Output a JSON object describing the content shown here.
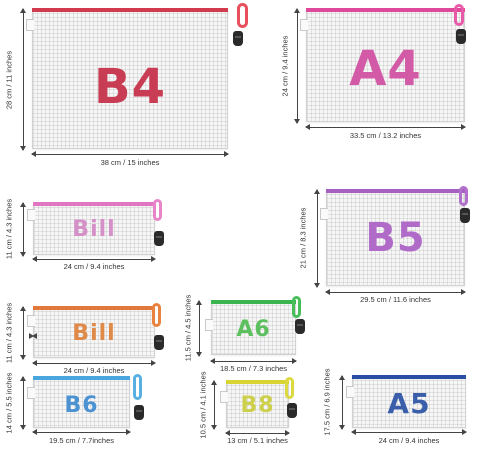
{
  "bags": [
    {
      "id": "b4",
      "label": "B4",
      "color": "#c83c54",
      "width": "38 cm / 15 inches",
      "height": "28 cm / 11 inches"
    },
    {
      "id": "a4",
      "label": "A4",
      "color": "#d25aa6",
      "width": "33.5 cm / 13.2 inches",
      "height": "24 cm / 9.4 inches"
    },
    {
      "id": "bill1",
      "label": "Bill",
      "color": "#d590c8",
      "width": "24 cm / 9.4 inches",
      "height": "11 cm / 4.3 inches"
    },
    {
      "id": "b5",
      "label": "B5",
      "color": "#b06ac8",
      "width": "29.5 cm / 11.6 inches",
      "height": "21 cm / 8.3 inches"
    },
    {
      "id": "bill2",
      "label": "Bill",
      "color": "#e08a4a",
      "width": "24 cm / 9.4 inches",
      "height": "11 cm / 4.3 inches"
    },
    {
      "id": "a6",
      "label": "A6",
      "color": "#5cc05e",
      "width": "18.5 cm / 7.3 inches",
      "height": "11.5 cm / 4.5 inches"
    },
    {
      "id": "b6",
      "label": "B6",
      "color": "#4b92d2",
      "width": "19.5 cm / 7.7inches",
      "height": "14 cm / 5.5 inches"
    },
    {
      "id": "b8",
      "label": "B8",
      "color": "#cdd04a",
      "width": "13 cm / 5.1 inches",
      "height": "10.5 cm / 4.1 inches"
    },
    {
      "id": "a5",
      "label": "A5",
      "color": "#3a5eaa",
      "width": "24 cm / 9.4 inches",
      "height": "17.5 cm / 6.9 inches"
    }
  ],
  "zip_colors": {
    "b4": "#d23a4e",
    "a4": "#e0489c",
    "bill1": "#e276c2",
    "b5": "#a560c2",
    "bill2": "#e2783a",
    "a6": "#3ab44e",
    "b6": "#4aa6de",
    "b8": "#d8d432",
    "a5": "#2a4ea6"
  }
}
